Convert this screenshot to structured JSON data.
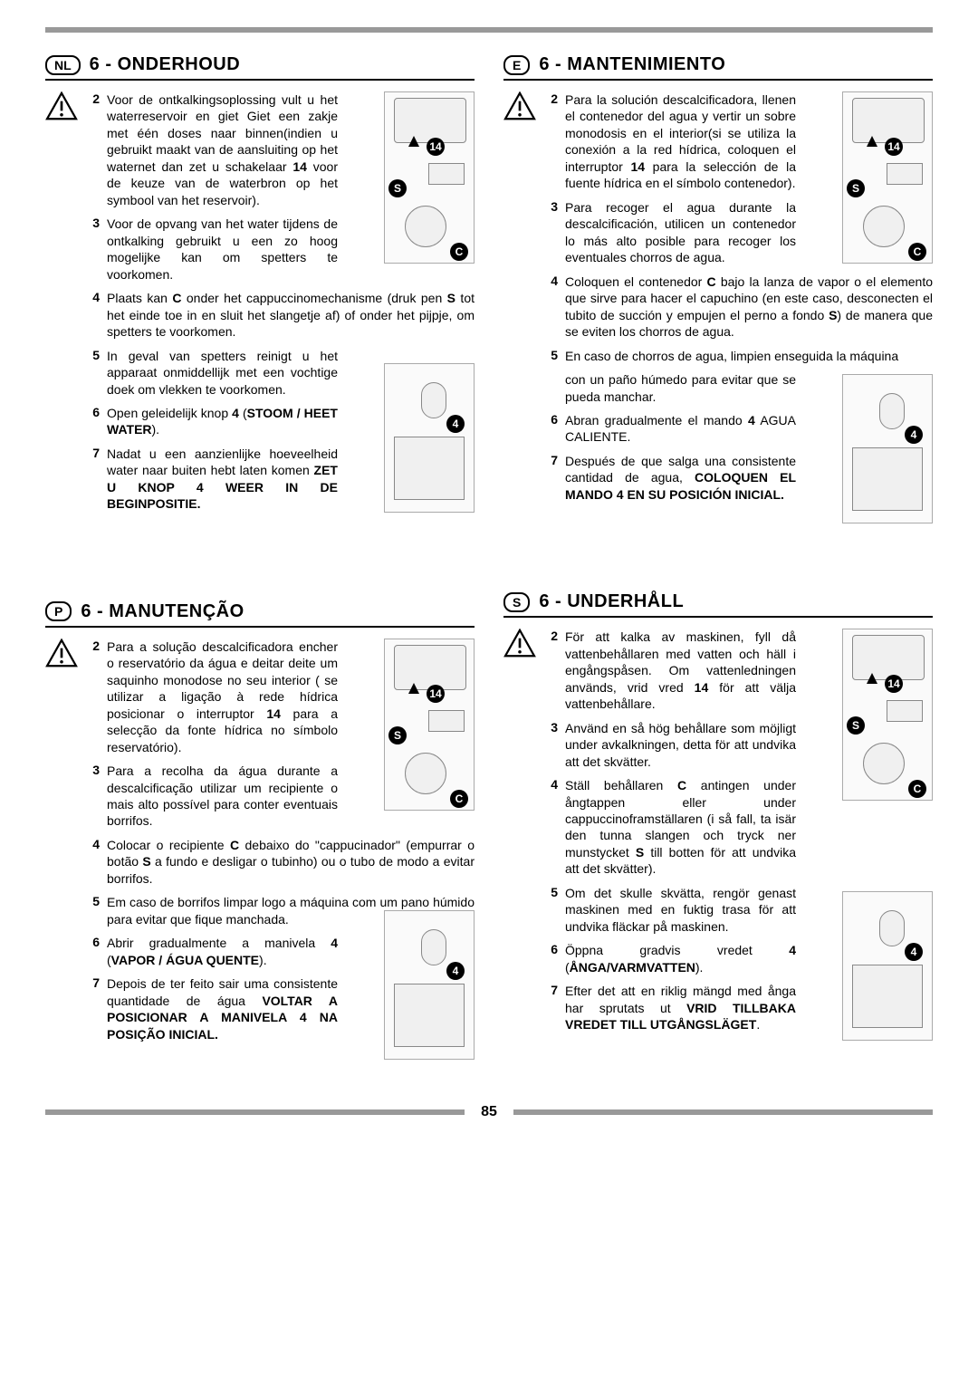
{
  "page_number": "85",
  "bar_color": "#999999",
  "sections": {
    "nl": {
      "badge": "NL",
      "title": "6 - ONDERHOUD",
      "items": [
        {
          "n": "2",
          "html": "Voor de ontkalkingsoplossing vult u het waterreservoir en giet Giet een zakje met één doses naar binnen(indien u gebruikt maakt van de aansluiting op het waternet dan zet u schakelaar <b>14</b> voor de keuze van de waterbron op het symbool van het reservoir).",
          "narrow": true,
          "warn": true
        },
        {
          "n": "3",
          "html": "Voor de opvang van het water tijdens de ontkalking gebruikt u een zo hoog mogelijke kan om spetters te voorkomen.",
          "narrow": true
        },
        {
          "n": "4",
          "html": "Plaats kan <b>C</b> onder het cappuccinomechanisme (druk pen <b>S</b> tot het einde toe in en sluit het slangetje af) of onder het pijpje, om spetters te voorkomen."
        },
        {
          "n": "5",
          "html": "In geval van spetters reinigt u het apparaat onmiddellijk met een vochtige doek om vlekken te voorkomen.",
          "narrow": true
        },
        {
          "n": "6",
          "html": "Open geleidelijk knop <b>4</b> (<b>STOOM / HEET WATER</b>).",
          "narrow": true
        },
        {
          "n": "7",
          "html": "Nadat u een aanzienlijke hoeveelheid water naar buiten hebt laten komen <b>ZET U KNOP 4 WEER IN DE BEGINPOSITIE.</b>",
          "narrow": true
        }
      ]
    },
    "e": {
      "badge": "E",
      "title": "6 - MANTENIMIENTO",
      "items": [
        {
          "n": "2",
          "html": "Para la solución descalcificadora, llenen el contenedor del agua y vertir un sobre monodosis en el interior(si se utiliza la conexión a la red hídrica, coloquen el interruptor <b>14</b> para la selección de la fuente hídrica en el símbolo contenedor).",
          "narrow": true,
          "warn": true
        },
        {
          "n": "3",
          "html": "Para recoger el agua durante la descalcificación, utilicen un contenedor lo más alto posible para recoger los eventuales chorros de agua.",
          "narrow": true
        },
        {
          "n": "4",
          "html": "Coloquen el contenedor <b>C</b> bajo la lanza de vapor o el elemento que sirve para hacer el capuchino (en este caso, desconecten el tubito de succión y empujen el perno a fondo <b>S</b>) de manera que se eviten los chorros de agua."
        },
        {
          "n": "5",
          "html": "En caso de chorros de agua, limpien enseguida la máquina"
        },
        {
          "n": "",
          "html": "con un paño húmedo para evitar que se pueda manchar.",
          "narrow": true
        },
        {
          "n": "6",
          "html": "Abran gradualmente el mando <b>4</b> AGUA CALIENTE.",
          "narrow": true
        },
        {
          "n": "7",
          "html": "Después de que salga una consistente cantidad de agua, <b>COLOQUEN EL MANDO 4 EN SU POSICIÓN INICIAL.</b>",
          "narrow": true
        }
      ]
    },
    "p": {
      "badge": "P",
      "title": "6 - MANUTENÇÃO",
      "items": [
        {
          "n": "2",
          "html": "Para a solução descalcificadora encher o reservatório da água e deitar deite um saquinho monodose no seu interior ( se utilizar a ligação à rede hídrica posicionar o interruptor <b>14</b> para a selecção da fonte hídrica no símbolo reservatório).",
          "narrow": true,
          "warn": true
        },
        {
          "n": "3",
          "html": "Para a recolha da água durante a descalcificação utilizar um recipiente o mais alto possível para conter eventuais borrifos.",
          "narrow": true
        },
        {
          "n": "4",
          "html": "Colocar o recipiente <b>C</b> debaixo do \"cappucinador\" (empurrar o botão <b>S</b> a fundo e desligar o tubinho) ou o tubo de modo a evitar borrifos."
        },
        {
          "n": "5",
          "html": "Em caso de borrifos limpar logo a máquina com um pano húmido para evitar que fique manchada."
        },
        {
          "n": "6",
          "html": "Abrir gradualmente a manivela <b>4</b> (<b>VAPOR / ÁGUA QUENTE</b>).",
          "narrow": true
        },
        {
          "n": "7",
          "html": "Depois de ter feito sair uma consistente quantidade de água <b>VOLTAR A POSICIONAR A MANIVELA 4 NA POSIÇÃO INICIAL.</b>",
          "narrow": true
        }
      ]
    },
    "s": {
      "badge": "S",
      "title": "6 -  UNDERHÅLL",
      "items": [
        {
          "n": "2",
          "html": "För att kalka av maskinen, fyll då vattenbehållaren med vatten och häll i engångspåsen. Om vattenledningen används, vrid vred <b>14</b> för att välja vattenbehållare.",
          "narrow": true,
          "warn": true
        },
        {
          "n": "3",
          "html": "Använd en så hög behållare som möjligt under avkalkningen, detta för att undvika att det skvätter.",
          "narrow": true
        },
        {
          "n": "4",
          "html": "Ställ behållaren <b>C</b> antingen under ångtappen eller under cappuccinoframställaren (i så fall, ta isär den tunna slangen och tryck ner munstycket <b>S</b> till botten för att undvika att det skvätter).",
          "narrow": true
        },
        {
          "n": "5",
          "html": "Om det skulle skvätta, rengör genast maskinen med en fuktig trasa för att undvika fläckar på maskinen.",
          "narrow": true
        },
        {
          "n": "6",
          "html": "Öppna gradvis vredet <b>4</b> (<b>ÅNGA/VARMVATTEN</b>).",
          "narrow": true
        },
        {
          "n": "7",
          "html": "Efter det att en riklig mängd med ånga har sprutats ut <b>VRID TILLBAKA VREDET TILL UTGÅNGSLÄGET</b>.",
          "narrow": true
        }
      ]
    }
  },
  "fig_labels": {
    "fourteen": "14",
    "s": "S",
    "c": "C",
    "four": "4"
  }
}
